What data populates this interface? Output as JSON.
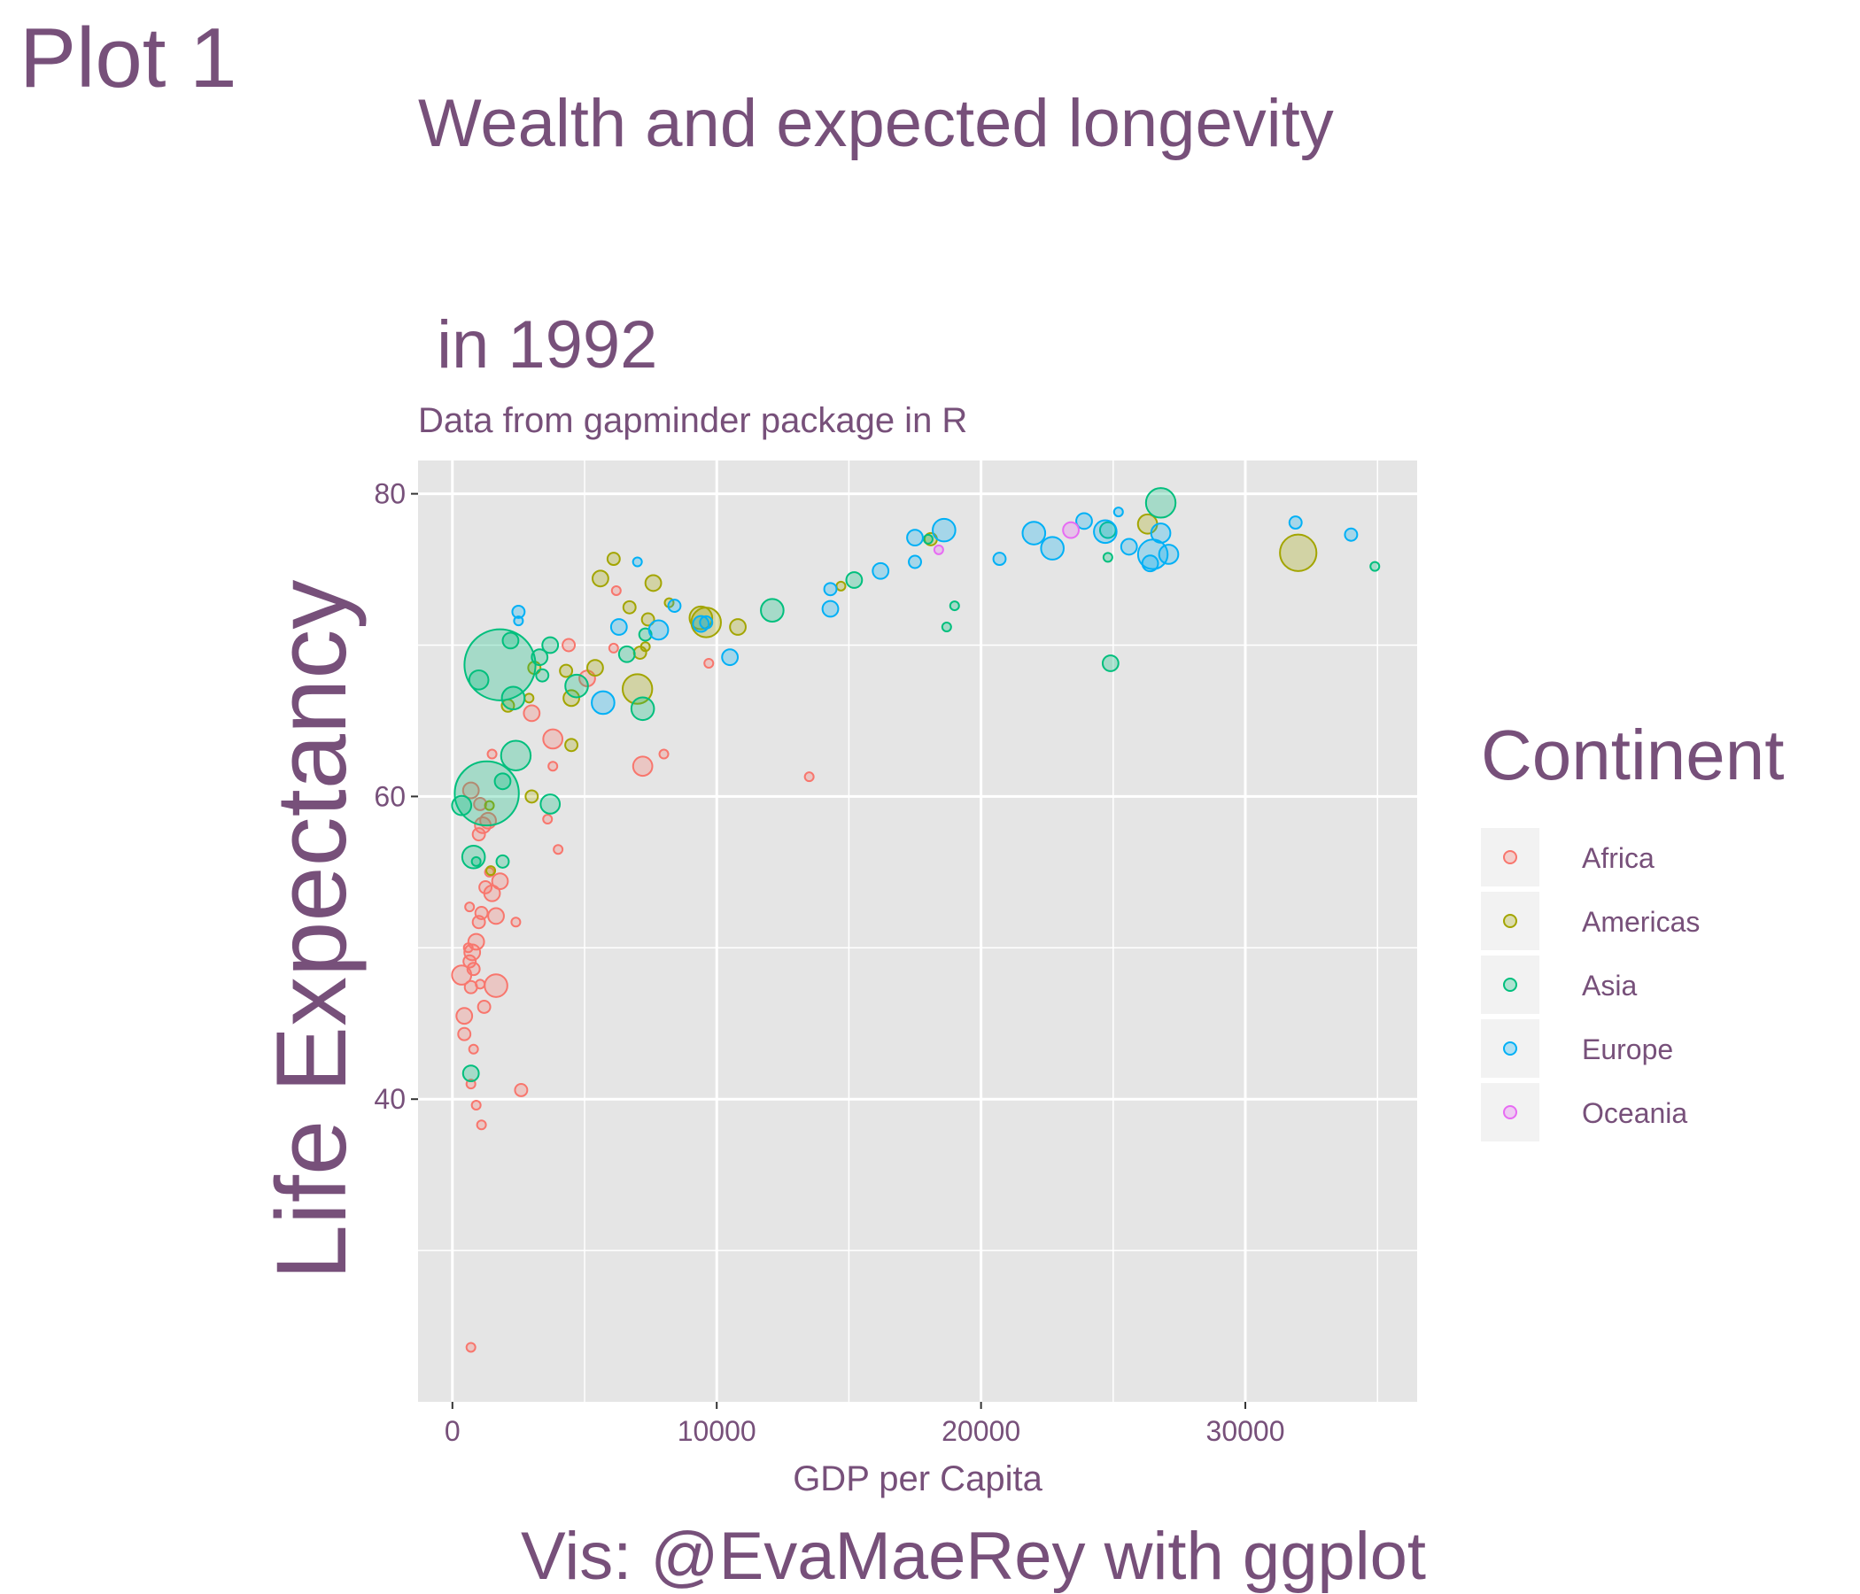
{
  "tag": "Plot 1",
  "caption": "Vis: @EvaMaeRey with ggplot",
  "colors": {
    "text": "#77507a",
    "panel": "#e5e5e5",
    "grid": "#ffffff",
    "Africa": "#F8766D",
    "Americas": "#A3A500",
    "Asia": "#00BF7D",
    "Europe": "#00B0F6",
    "Oceania": "#E76BF3"
  },
  "chart_data": {
    "type": "scatter",
    "title_line1": "Wealth and expected longevity",
    "title_line2": " in 1992",
    "subtitle": "Data from gapminder package in R",
    "xlabel": "GDP per Capita",
    "ylabel": "Life Expectancy",
    "xlim": [
      -1300,
      36500
    ],
    "ylim": [
      20,
      82.2
    ],
    "x_ticks": [
      0,
      10000,
      20000,
      30000
    ],
    "x_tick_labels": [
      "0",
      "10000",
      "20000",
      "30000"
    ],
    "y_ticks": [
      40,
      60,
      80
    ],
    "y_tick_labels": [
      "40",
      "60",
      "80"
    ],
    "grid": true,
    "legend_title": "Continent",
    "legend_position": "right",
    "legend": [
      "Africa",
      "Americas",
      "Asia",
      "Europe",
      "Oceania"
    ],
    "series": [
      {
        "name": "Africa",
        "points": [
          [
            700,
            23.6,
            1
          ],
          [
            2600,
            40.6,
            1.5
          ],
          [
            900,
            39.6,
            1
          ],
          [
            1100,
            38.3,
            1
          ],
          [
            700,
            41,
            1
          ],
          [
            800,
            43.3,
            1
          ],
          [
            450,
            44.3,
            1.5
          ],
          [
            450,
            45.5,
            2
          ],
          [
            1200,
            46.1,
            1.5
          ],
          [
            1650,
            47.5,
            3
          ],
          [
            700,
            47.4,
            1.5
          ],
          [
            1050,
            47.6,
            1
          ],
          [
            350,
            48.2,
            2.5
          ],
          [
            800,
            48.6,
            1.5
          ],
          [
            650,
            49.1,
            1.5
          ],
          [
            750,
            49.7,
            2
          ],
          [
            600,
            50,
            1
          ],
          [
            900,
            50.4,
            2
          ],
          [
            2400,
            51.7,
            1
          ],
          [
            1000,
            51.7,
            1.5
          ],
          [
            1650,
            52.1,
            2
          ],
          [
            1100,
            52.3,
            1.5
          ],
          [
            650,
            52.7,
            1
          ],
          [
            1500,
            53.6,
            2
          ],
          [
            1250,
            54,
            1.5
          ],
          [
            1800,
            54.4,
            2
          ],
          [
            1400,
            55,
            1
          ],
          [
            4000,
            56.5,
            1
          ],
          [
            1000,
            57.5,
            1.5
          ],
          [
            1150,
            58.1,
            2
          ],
          [
            1350,
            58.4,
            2
          ],
          [
            1050,
            59.5,
            1.5
          ],
          [
            700,
            60.4,
            2
          ],
          [
            3600,
            58.5,
            1
          ],
          [
            1500,
            62.8,
            1
          ],
          [
            3800,
            62,
            1
          ],
          [
            7200,
            62,
            2.5
          ],
          [
            8000,
            62.8,
            1
          ],
          [
            13500,
            61.3,
            1
          ],
          [
            3800,
            63.8,
            2.5
          ],
          [
            3000,
            65.5,
            2
          ],
          [
            5100,
            67.8,
            2
          ],
          [
            6100,
            69.8,
            1
          ],
          [
            4400,
            70,
            1.5
          ],
          [
            9700,
            68.8,
            1
          ],
          [
            6200,
            73.6,
            1
          ]
        ]
      },
      {
        "name": "Americas",
        "points": [
          [
            1400,
            59.4,
            1
          ],
          [
            3000,
            60,
            1.5
          ],
          [
            1450,
            55.1,
            1
          ],
          [
            2100,
            66,
            1.5
          ],
          [
            2900,
            66.5,
            1
          ],
          [
            3100,
            68.5,
            1.5
          ],
          [
            4500,
            66.5,
            2
          ],
          [
            4500,
            63.4,
            1.5
          ],
          [
            4300,
            68.3,
            1.5
          ],
          [
            5400,
            68.5,
            2
          ],
          [
            7000,
            67.1,
            4
          ],
          [
            7100,
            69.5,
            1.5
          ],
          [
            7300,
            69.9,
            1
          ],
          [
            9400,
            71.8,
            3
          ],
          [
            10800,
            71.2,
            2
          ],
          [
            9600,
            71.5,
            4
          ],
          [
            6700,
            72.5,
            1.5
          ],
          [
            7400,
            71.7,
            1.5
          ],
          [
            7600,
            74.1,
            2
          ],
          [
            8200,
            72.8,
            1
          ],
          [
            5600,
            74.4,
            2
          ],
          [
            6100,
            75.7,
            1.5
          ],
          [
            14700,
            73.9,
            1
          ],
          [
            18100,
            77,
            1.5
          ],
          [
            26300,
            78,
            2.5
          ],
          [
            32000,
            76.1,
            5
          ]
        ]
      },
      {
        "name": "Asia",
        "points": [
          [
            1800,
            68.7,
            10
          ],
          [
            1300,
            60.2,
            9
          ],
          [
            800,
            56,
            3
          ],
          [
            700,
            41.7,
            2
          ],
          [
            900,
            55.7,
            1
          ],
          [
            350,
            59.4,
            2.5
          ],
          [
            1900,
            61,
            2
          ],
          [
            1900,
            55.7,
            1.5
          ],
          [
            2400,
            62.7,
            4
          ],
          [
            2300,
            66.5,
            3
          ],
          [
            1000,
            67.7,
            2.5
          ],
          [
            2200,
            70.3,
            2
          ],
          [
            3300,
            69.2,
            2
          ],
          [
            3400,
            68,
            1.5
          ],
          [
            3700,
            70,
            2
          ],
          [
            3700,
            59.5,
            2.5
          ],
          [
            4700,
            67.3,
            3
          ],
          [
            7200,
            65.8,
            3
          ],
          [
            7300,
            70.7,
            1.5
          ],
          [
            6600,
            69.4,
            2
          ],
          [
            12100,
            72.3,
            3
          ],
          [
            15200,
            74.3,
            2
          ],
          [
            18000,
            77,
            1
          ],
          [
            19000,
            72.6,
            1
          ],
          [
            18700,
            71.2,
            1
          ],
          [
            24800,
            75.8,
            1
          ],
          [
            24800,
            77.6,
            2
          ],
          [
            24900,
            68.8,
            2
          ],
          [
            26800,
            79.4,
            4
          ],
          [
            34900,
            75.2,
            1
          ]
        ]
      },
      {
        "name": "Europe",
        "points": [
          [
            2500,
            71.6,
            1
          ],
          [
            2500,
            72.2,
            1.5
          ],
          [
            5700,
            66.2,
            3
          ],
          [
            6300,
            71.2,
            2
          ],
          [
            7000,
            75.5,
            1
          ],
          [
            7800,
            71,
            2.5
          ],
          [
            8400,
            72.6,
            1.5
          ],
          [
            9400,
            71.4,
            2
          ],
          [
            9600,
            71.5,
            1.5
          ],
          [
            10500,
            69.2,
            2
          ],
          [
            14300,
            72.4,
            2
          ],
          [
            14300,
            73.7,
            1.5
          ],
          [
            16200,
            74.9,
            2
          ],
          [
            17500,
            77.1,
            2
          ],
          [
            17500,
            75.5,
            1.5
          ],
          [
            18600,
            77.6,
            3
          ],
          [
            20700,
            75.7,
            1.5
          ],
          [
            22000,
            77.4,
            3
          ],
          [
            22700,
            76.4,
            3
          ],
          [
            23900,
            78.2,
            2
          ],
          [
            24700,
            77.5,
            3
          ],
          [
            25200,
            78.8,
            1
          ],
          [
            25600,
            76.5,
            2
          ],
          [
            26400,
            75.4,
            2
          ],
          [
            26500,
            76,
            4
          ],
          [
            26800,
            77.4,
            2.5
          ],
          [
            27100,
            76,
            2.5
          ],
          [
            31900,
            78.1,
            1.5
          ],
          [
            34000,
            77.3,
            1.5
          ]
        ]
      },
      {
        "name": "Oceania",
        "points": [
          [
            18400,
            76.3,
            1
          ],
          [
            23400,
            77.6,
            2
          ]
        ]
      }
    ]
  }
}
